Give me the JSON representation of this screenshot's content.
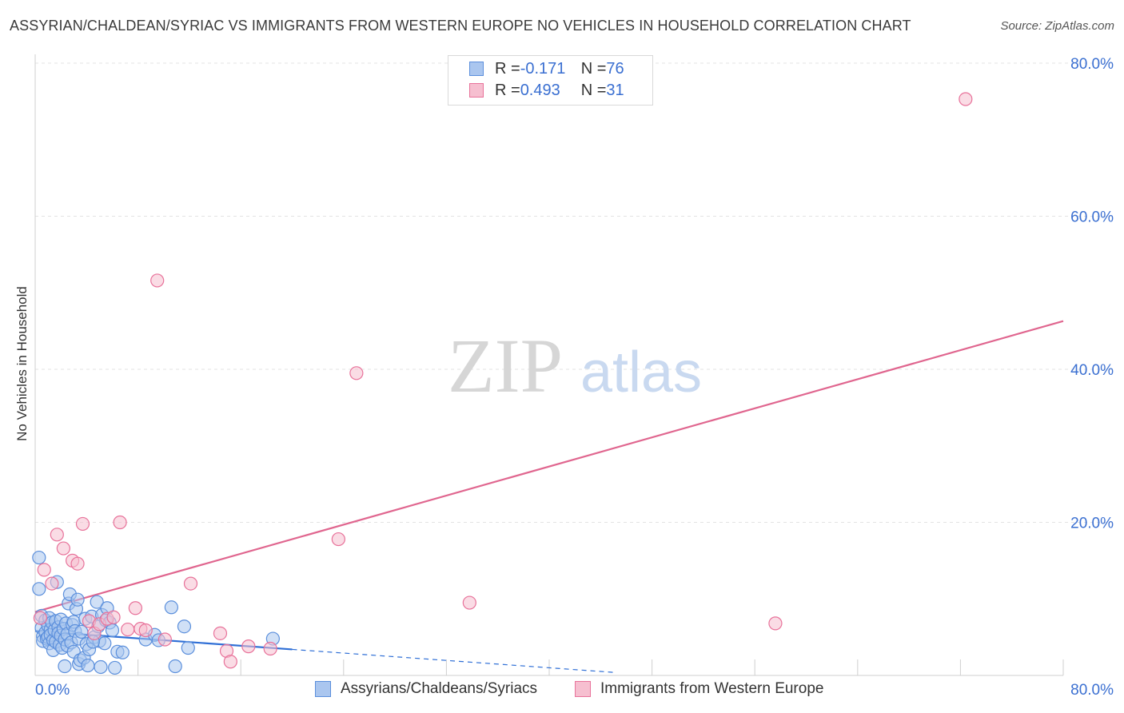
{
  "title": "ASSYRIAN/CHALDEAN/SYRIAC VS IMMIGRANTS FROM WESTERN EUROPE NO VEHICLES IN HOUSEHOLD CORRELATION CHART",
  "source": "Source: ZipAtlas.com",
  "watermark": {
    "zip": "ZIP",
    "atlas": "atlas"
  },
  "legend": {
    "series1": {
      "r_label": "R = ",
      "r_value": "-0.171",
      "n_label": "N = ",
      "n_value": "76"
    },
    "series2": {
      "r_label": "R = ",
      "r_value": "0.493",
      "n_label": "N = ",
      "n_value": "31"
    }
  },
  "colors": {
    "blue": "#5b8fdc",
    "blue_fill": "#aac6ef",
    "pink": "#e8729a",
    "pink_fill": "#f6bfd0",
    "tick_text": "#3a6fd1"
  },
  "chart_data": {
    "type": "scatter",
    "title": "ASSYRIAN/CHALDEAN/SYRIAC VS IMMIGRANTS FROM WESTERN EUROPE NO VEHICLES IN HOUSEHOLD CORRELATION CHART",
    "xlabel": "",
    "ylabel": "No Vehicles in Household",
    "xlim": [
      0,
      80
    ],
    "ylim": [
      0,
      80
    ],
    "x_tick_labels": [
      "0.0%",
      "80.0%"
    ],
    "y_ticks": [
      20,
      40,
      60,
      80
    ],
    "y_tick_labels": [
      "20.0%",
      "40.0%",
      "60.0%",
      "80.0%"
    ],
    "grid": true,
    "legend_position": "top-center",
    "series": [
      {
        "name": "Assyrians/Chaldeans/Syriacs",
        "r": -0.171,
        "n": 76,
        "trend": {
          "x0": 0,
          "y0": 5.8,
          "x1": 20,
          "y1": 3.4,
          "dashed_to_x": 45,
          "dashed_to_y": 0.4
        },
        "points": [
          [
            0.3,
            15.4
          ],
          [
            0.3,
            11.3
          ],
          [
            0.5,
            7.8
          ],
          [
            0.5,
            6.2
          ],
          [
            0.6,
            5.1
          ],
          [
            0.6,
            4.5
          ],
          [
            0.8,
            7.2
          ],
          [
            0.8,
            5.6
          ],
          [
            0.9,
            4.8
          ],
          [
            1.0,
            6.5
          ],
          [
            1.0,
            5.0
          ],
          [
            1.1,
            7.5
          ],
          [
            1.1,
            4.2
          ],
          [
            1.2,
            6.0
          ],
          [
            1.2,
            5.3
          ],
          [
            1.3,
            6.9
          ],
          [
            1.4,
            4.6
          ],
          [
            1.4,
            3.3
          ],
          [
            1.5,
            5.9
          ],
          [
            1.6,
            7.1
          ],
          [
            1.6,
            4.4
          ],
          [
            1.7,
            12.2
          ],
          [
            1.8,
            6.3
          ],
          [
            1.8,
            5.5
          ],
          [
            1.9,
            4.0
          ],
          [
            2.0,
            7.3
          ],
          [
            2.0,
            5.2
          ],
          [
            2.1,
            3.6
          ],
          [
            2.2,
            6.1
          ],
          [
            2.3,
            4.7
          ],
          [
            2.3,
            1.2
          ],
          [
            2.4,
            6.8
          ],
          [
            2.5,
            5.4
          ],
          [
            2.5,
            3.9
          ],
          [
            2.6,
            9.4
          ],
          [
            2.7,
            10.6
          ],
          [
            2.8,
            4.3
          ],
          [
            2.9,
            6.6
          ],
          [
            3.0,
            3.1
          ],
          [
            3.0,
            7.0
          ],
          [
            3.1,
            5.8
          ],
          [
            3.2,
            8.7
          ],
          [
            3.3,
            9.9
          ],
          [
            3.4,
            1.5
          ],
          [
            3.4,
            4.8
          ],
          [
            3.5,
            2.0
          ],
          [
            3.6,
            5.7
          ],
          [
            3.8,
            2.3
          ],
          [
            3.9,
            7.4
          ],
          [
            4.0,
            4.1
          ],
          [
            4.1,
            1.3
          ],
          [
            4.2,
            3.4
          ],
          [
            4.4,
            7.7
          ],
          [
            4.6,
            5.0
          ],
          [
            4.8,
            9.6
          ],
          [
            4.9,
            6.4
          ],
          [
            5.0,
            4.5
          ],
          [
            5.1,
            1.1
          ],
          [
            5.2,
            7.9
          ],
          [
            5.4,
            4.2
          ],
          [
            5.5,
            7.2
          ],
          [
            5.6,
            8.8
          ],
          [
            5.8,
            6.9
          ],
          [
            6.0,
            5.9
          ],
          [
            6.2,
            1.0
          ],
          [
            6.4,
            3.1
          ],
          [
            6.8,
            3.0
          ],
          [
            8.6,
            4.7
          ],
          [
            9.3,
            5.3
          ],
          [
            9.6,
            4.6
          ],
          [
            10.6,
            8.9
          ],
          [
            10.9,
            1.2
          ],
          [
            11.6,
            6.4
          ],
          [
            11.9,
            3.6
          ],
          [
            18.5,
            4.8
          ],
          [
            4.5,
            4.4
          ]
        ]
      },
      {
        "name": "Immigrants from Western Europe",
        "r": 0.493,
        "n": 31,
        "trend": {
          "x0": 0,
          "y0": 8.3,
          "x1": 80,
          "y1": 46.3
        },
        "points": [
          [
            0.4,
            7.5
          ],
          [
            0.7,
            13.8
          ],
          [
            1.3,
            12.0
          ],
          [
            1.7,
            18.4
          ],
          [
            2.2,
            16.6
          ],
          [
            2.9,
            15.0
          ],
          [
            3.3,
            14.6
          ],
          [
            3.7,
            19.8
          ],
          [
            4.2,
            7.1
          ],
          [
            4.6,
            5.5
          ],
          [
            5.0,
            6.7
          ],
          [
            5.6,
            7.4
          ],
          [
            6.1,
            7.6
          ],
          [
            6.6,
            20.0
          ],
          [
            7.2,
            6.0
          ],
          [
            7.8,
            8.8
          ],
          [
            8.2,
            6.1
          ],
          [
            8.6,
            5.9
          ],
          [
            9.5,
            51.6
          ],
          [
            10.1,
            4.7
          ],
          [
            12.1,
            12.0
          ],
          [
            14.4,
            5.5
          ],
          [
            14.9,
            3.2
          ],
          [
            15.2,
            1.8
          ],
          [
            16.6,
            3.8
          ],
          [
            18.3,
            3.5
          ],
          [
            23.6,
            17.8
          ],
          [
            25.0,
            39.5
          ],
          [
            33.8,
            9.5
          ],
          [
            57.6,
            6.8
          ],
          [
            72.4,
            75.3
          ]
        ]
      }
    ]
  },
  "bottom_legend": {
    "item1": "Assyrians/Chaldeans/Syriacs",
    "item2": "Immigrants from Western Europe"
  }
}
